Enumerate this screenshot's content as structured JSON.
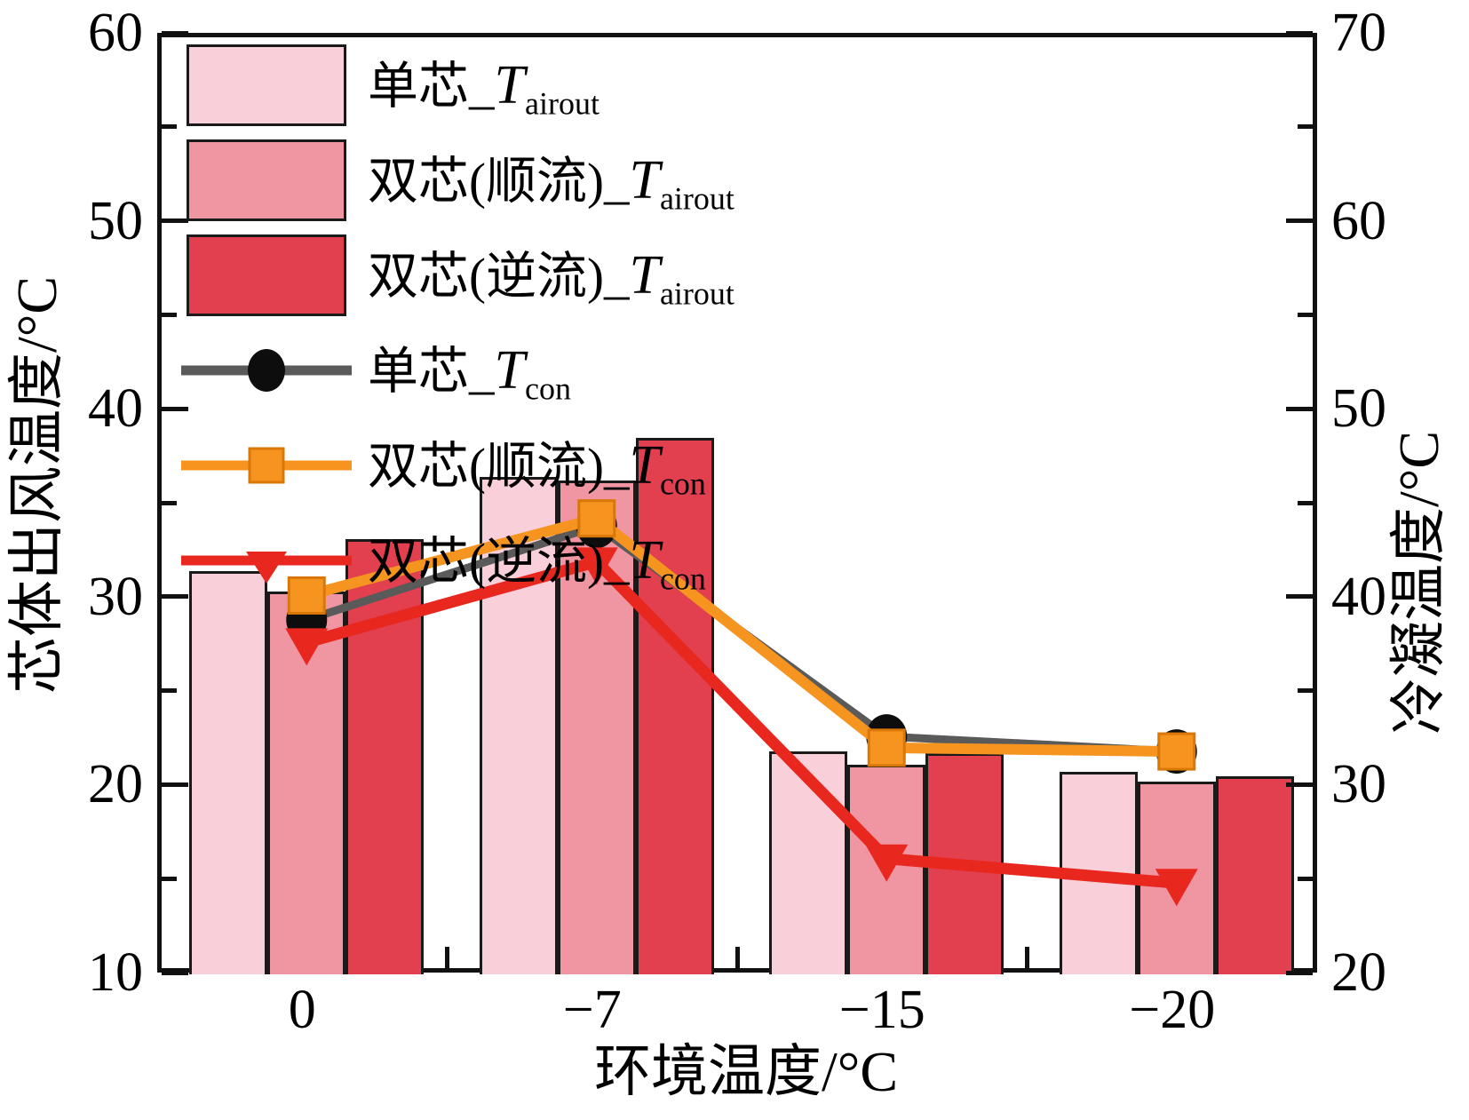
{
  "chart_data": {
    "type": "bar+line",
    "categories": [
      "0",
      "−7",
      "−15",
      "−20"
    ],
    "xlabel": "环境温度/°C",
    "left_axis": {
      "label": "芯体出风温度/°C",
      "min": 10,
      "max": 60,
      "major_ticks": [
        10,
        20,
        30,
        40,
        50,
        60
      ],
      "minor_ticks": [
        15,
        25,
        35,
        45,
        55
      ]
    },
    "right_axis": {
      "label": "冷凝温度/°C",
      "min": 20,
      "max": 70,
      "major_ticks": [
        20,
        30,
        40,
        50,
        60,
        70
      ],
      "minor_ticks": [
        25,
        35,
        45,
        55,
        65
      ]
    },
    "bar_series": [
      {
        "name": "单芯_Tairout",
        "legend": {
          "prefix": "单芯_",
          "symbol": "T",
          "sub": "airout"
        },
        "color": "#f9cfda",
        "pattern": false,
        "values": [
          31.6,
          36.6,
          22.0,
          20.9
        ]
      },
      {
        "name": "双芯(顺流)_Tairout",
        "legend": {
          "prefix": "双芯(顺流)_",
          "symbol": "T",
          "sub": "airout"
        },
        "color": "#ef96a2",
        "pattern": true,
        "values": [
          30.5,
          36.4,
          21.3,
          20.4
        ]
      },
      {
        "name": "双芯(逆流)_Tairout",
        "legend": {
          "prefix": "双芯(逆流)_",
          "symbol": "T",
          "sub": "airout"
        },
        "color": "#e2404f",
        "pattern": false,
        "values": [
          33.3,
          38.7,
          21.9,
          20.7
        ]
      }
    ],
    "line_series": [
      {
        "name": "单芯_Tcon",
        "legend": {
          "prefix": "单芯_",
          "symbol": "T",
          "sub": "con"
        },
        "color": "#5a5a5a",
        "marker": "circle",
        "marker_color": "#0d0d0d",
        "values": [
          39.0,
          44.0,
          32.8,
          32.0
        ]
      },
      {
        "name": "双芯(顺流)_Tcon",
        "legend": {
          "prefix": "双芯(顺流)_",
          "symbol": "T",
          "sub": "con"
        },
        "color": "#f5941f",
        "marker": "square",
        "marker_color": "#f5941f",
        "values": [
          40.3,
          44.4,
          32.2,
          32.0
        ]
      },
      {
        "name": "双芯(逆流)_Tcon",
        "legend": {
          "prefix": "双芯(逆流)_",
          "symbol": "T",
          "sub": "con"
        },
        "color": "#e8271f",
        "marker": "triangle-down",
        "marker_color": "#e8271f",
        "values": [
          37.8,
          42.1,
          26.3,
          25.0
        ]
      }
    ],
    "axis_color": "#111111",
    "background_color": "#ffffff"
  }
}
